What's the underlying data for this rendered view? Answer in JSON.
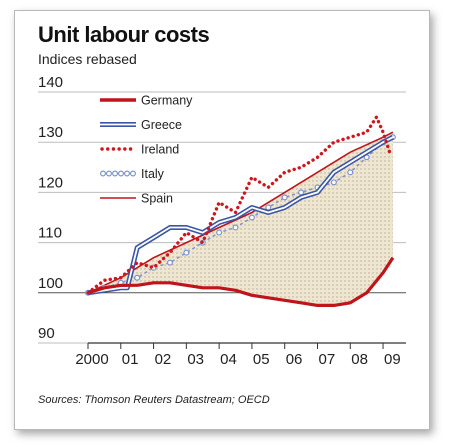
{
  "chart_data": {
    "type": "line",
    "title": "Unit labour costs",
    "subtitle": "Indices rebased",
    "source": "Sources: Thomson Reuters Datastream; OECD",
    "ylim": [
      90,
      140
    ],
    "yticks": [
      90,
      100,
      110,
      120,
      130,
      140
    ],
    "xlim": [
      2000,
      2009.7
    ],
    "xtick_labels": [
      "2000",
      "01",
      "02",
      "03",
      "04",
      "05",
      "06",
      "07",
      "08",
      "09"
    ],
    "xtick_positions": [
      2000,
      2001,
      2002,
      2003,
      2004,
      2005,
      2006,
      2007,
      2008,
      2009
    ],
    "grid": true,
    "legend_position": "top-left",
    "shading": "area between Germany and Spain",
    "series": [
      {
        "name": "Germany",
        "style": "solid-thick",
        "color": "#c0141b",
        "x": [
          2000,
          2000.5,
          2001,
          2001.5,
          2002,
          2002.5,
          2003,
          2003.5,
          2004,
          2004.5,
          2005,
          2005.5,
          2006,
          2006.5,
          2007,
          2007.5,
          2008,
          2008.5,
          2009,
          2009.3
        ],
        "values": [
          100,
          101,
          101.5,
          101.5,
          102,
          102,
          101.5,
          101,
          101,
          100.5,
          99.5,
          99,
          98.5,
          98,
          97.5,
          97.5,
          98,
          100,
          104,
          107
        ]
      },
      {
        "name": "Greece",
        "style": "double-line",
        "color": "#3a56a8",
        "x": [
          2000,
          2000.5,
          2001,
          2001.2,
          2001.5,
          2002,
          2002.5,
          2003,
          2003.5,
          2004,
          2004.5,
          2005,
          2005.5,
          2006,
          2006.5,
          2007,
          2007.5,
          2008,
          2008.5,
          2009,
          2009.3
        ],
        "values": [
          100,
          100.5,
          101,
          101,
          109,
          111,
          113,
          113,
          112,
          114,
          115,
          117,
          116,
          117,
          119,
          120,
          124,
          126,
          128,
          130,
          131
        ]
      },
      {
        "name": "Ireland",
        "style": "dotted-thick",
        "color": "#d0161d",
        "x": [
          2000,
          2000.5,
          2001,
          2001.5,
          2002,
          2002.5,
          2003,
          2003.5,
          2004,
          2004.5,
          2005,
          2005.5,
          2006,
          2006.5,
          2007,
          2007.5,
          2008,
          2008.5,
          2008.8,
          2009,
          2009.2
        ],
        "values": [
          100,
          102.5,
          103,
          106,
          105,
          108,
          112,
          110,
          118,
          116,
          123,
          121,
          124,
          125,
          127,
          130,
          131,
          132,
          135,
          132,
          128
        ]
      },
      {
        "name": "Italy",
        "style": "ring-markers",
        "color": "#7d93cf",
        "x": [
          2000,
          2000.5,
          2001,
          2001.5,
          2002,
          2002.5,
          2003,
          2003.5,
          2004,
          2004.5,
          2005,
          2005.5,
          2006,
          2006.5,
          2007,
          2007.5,
          2008,
          2008.5,
          2009,
          2009.3
        ],
        "values": [
          100,
          101,
          102,
          103,
          105,
          106,
          108,
          110,
          112,
          113,
          115,
          117,
          119,
          120,
          121,
          122,
          124,
          127,
          130,
          131
        ]
      },
      {
        "name": "Spain",
        "style": "solid-thin",
        "color": "#c0141b",
        "x": [
          2000,
          2001,
          2002,
          2003,
          2004,
          2005,
          2006,
          2007,
          2008,
          2009,
          2009.3
        ],
        "values": [
          100,
          103,
          107,
          110,
          113,
          116,
          120,
          124,
          128,
          131,
          132
        ]
      }
    ]
  }
}
